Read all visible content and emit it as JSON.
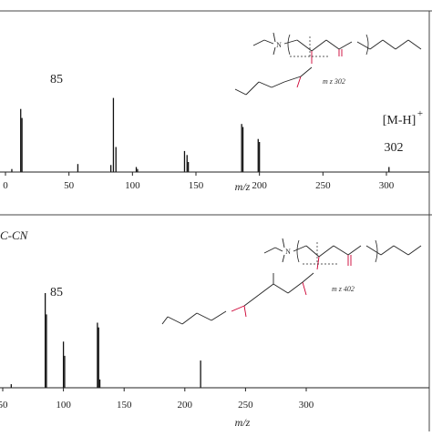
{
  "colors": {
    "axis": "#222222",
    "peak": "#111111",
    "bond": "#222222",
    "oxygen": "#cc0033",
    "frame": "#444444"
  },
  "chart_data": [
    {
      "type": "bar",
      "xlabel": "m/z",
      "xlim": [
        0,
        335
      ],
      "x_ticks": [
        "0",
        "50",
        "100",
        "150",
        "200",
        "250",
        "300"
      ],
      "annotations": [
        "85",
        "[M-H]",
        "+",
        "302"
      ],
      "structure_label": "m z 302",
      "structure_atom": "N",
      "peaks": [
        {
          "x": 5,
          "y": 0.03
        },
        {
          "x": 12,
          "y": 0.63
        },
        {
          "x": 13,
          "y": 0.54
        },
        {
          "x": 57,
          "y": 0.08
        },
        {
          "x": 83,
          "y": 0.07
        },
        {
          "x": 85,
          "y": 0.74
        },
        {
          "x": 87,
          "y": 0.25
        },
        {
          "x": 103,
          "y": 0.05
        },
        {
          "x": 104,
          "y": 0.03
        },
        {
          "x": 141,
          "y": 0.21
        },
        {
          "x": 143,
          "y": 0.17
        },
        {
          "x": 144,
          "y": 0.1
        },
        {
          "x": 186,
          "y": 0.48
        },
        {
          "x": 187,
          "y": 0.45
        },
        {
          "x": 199,
          "y": 0.33
        },
        {
          "x": 200,
          "y": 0.3
        },
        {
          "x": 302,
          "y": 0.05
        }
      ]
    },
    {
      "type": "bar",
      "title": "C-CN",
      "xlabel": "m/z",
      "xlim": [
        43,
        335
      ],
      "x_ticks": [
        "50",
        "100",
        "150",
        "200",
        "250",
        "300"
      ],
      "annotations": [
        "85"
      ],
      "structure_label": "m z 402",
      "structure_atom": "N",
      "peaks": [
        {
          "x": 44,
          "y": 0.05
        },
        {
          "x": 57,
          "y": 0.03
        },
        {
          "x": 85,
          "y": 0.8
        },
        {
          "x": 86,
          "y": 0.62
        },
        {
          "x": 100,
          "y": 0.39
        },
        {
          "x": 101,
          "y": 0.27
        },
        {
          "x": 128,
          "y": 0.55
        },
        {
          "x": 129,
          "y": 0.51
        },
        {
          "x": 130,
          "y": 0.07
        },
        {
          "x": 213,
          "y": 0.23
        }
      ]
    }
  ]
}
